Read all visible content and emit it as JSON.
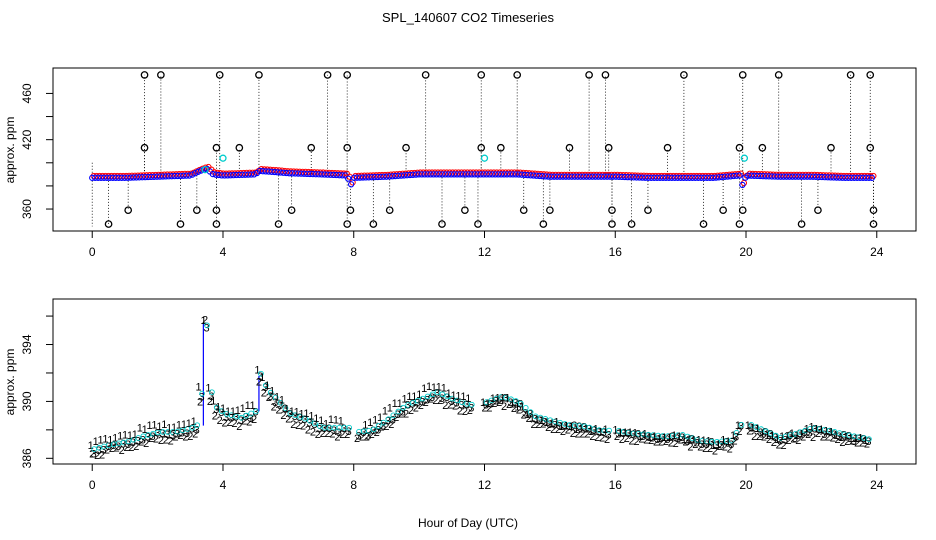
{
  "title": "SPL_140607  CO2 Timeseries",
  "xlabel": "Hour of Day (UTC)",
  "colors": {
    "blue": "#0000ff",
    "red": "#ff0000",
    "green": "#00cc00",
    "cyan": "#00cccc",
    "black": "#000000"
  },
  "chart_data": [
    {
      "type": "scatter",
      "title": "SPL_140607  CO2 Timeseries",
      "xlabel": "",
      "ylabel": "approx. ppm",
      "xlim": [
        -1.2,
        25.2
      ],
      "ylim": [
        341,
        482
      ],
      "xticks": [
        0,
        4,
        8,
        12,
        16,
        20,
        24
      ],
      "yticks": [
        360,
        380,
        400,
        420,
        440,
        460
      ],
      "ytick_labels": [
        "360",
        "",
        "",
        "420",
        "",
        "460"
      ],
      "baseline": [
        [
          0,
          387
        ],
        [
          1,
          387
        ],
        [
          2,
          388
        ],
        [
          3,
          389
        ],
        [
          3.3,
          393
        ],
        [
          3.5,
          395
        ],
        [
          3.7,
          390
        ],
        [
          4,
          389
        ],
        [
          5,
          390
        ],
        [
          5.1,
          393
        ],
        [
          5.6,
          392
        ],
        [
          6,
          391
        ],
        [
          7,
          390
        ],
        [
          7.8,
          389
        ],
        [
          7.9,
          380
        ],
        [
          8,
          387
        ],
        [
          9,
          388
        ],
        [
          10,
          390
        ],
        [
          11,
          390
        ],
        [
          12,
          390
        ],
        [
          13,
          390
        ],
        [
          14,
          388
        ],
        [
          15,
          388
        ],
        [
          16,
          388
        ],
        [
          17,
          387
        ],
        [
          18,
          387
        ],
        [
          19,
          387
        ],
        [
          19.8,
          389
        ],
        [
          19.9,
          380
        ],
        [
          20,
          389
        ],
        [
          21,
          388
        ],
        [
          22,
          388
        ],
        [
          23,
          387
        ],
        [
          23.8,
          387
        ]
      ],
      "spike_high": [
        1.6,
        2.1,
        3.9,
        5.1,
        7.2,
        7.8,
        10.2,
        11.9,
        13.0,
        15.2,
        15.7,
        18.1,
        19.9,
        21.0,
        23.2,
        23.8
      ],
      "spike_high_value": 476,
      "spike_mid": [
        1.6,
        3.8,
        4.5,
        6.7,
        7.8,
        9.6,
        11.9,
        12.5,
        14.6,
        15.8,
        17.6,
        19.8,
        20.5,
        22.6,
        23.8
      ],
      "spike_mid_value": 413,
      "spike_low1": [
        1.1,
        3.2,
        3.8,
        6.1,
        7.9,
        9.1,
        11.4,
        13.2,
        14.0,
        15.9,
        17.0,
        19.3,
        19.9,
        22.2,
        23.9
      ],
      "spike_low1_value": 359,
      "spike_low2": [
        0.5,
        2.7,
        3.8,
        5.7,
        7.8,
        8.6,
        10.7,
        11.8,
        13.8,
        15.9,
        16.5,
        18.7,
        19.8,
        21.7,
        23.9
      ],
      "spike_low2_value": 347,
      "cyan_points": [
        [
          3.45,
          394
        ],
        [
          4.0,
          404
        ],
        [
          12.0,
          404
        ],
        [
          19.95,
          404
        ]
      ]
    },
    {
      "type": "scatter",
      "title": "",
      "xlabel": "Hour of Day (UTC)",
      "ylabel": "approx. ppm",
      "xlim": [
        -1.2,
        25.2
      ],
      "ylim": [
        385.6,
        397.2
      ],
      "xticks": [
        0,
        4,
        8,
        12,
        16,
        20,
        24
      ],
      "yticks": [
        386,
        388,
        390,
        392,
        394,
        396
      ],
      "ytick_labels": [
        "386",
        "",
        "390",
        "",
        "394",
        ""
      ],
      "series": [
        {
          "name": "1",
          "color": "#ff0000",
          "offset": 0.6
        },
        {
          "name": "2",
          "color": "#00cc00",
          "offset": -0.3
        },
        {
          "name": "3",
          "color": "#0000ff",
          "offset": 0.0
        }
      ],
      "points": [
        [
          0,
          386.5
        ],
        [
          0.5,
          386.8
        ],
        [
          1,
          387.0
        ],
        [
          1.5,
          387.4
        ],
        [
          2,
          387.7
        ],
        [
          2.5,
          387.7
        ],
        [
          3,
          388.0
        ],
        [
          3.25,
          388.3
        ],
        [
          3.35,
          392.5
        ],
        [
          3.45,
          395.2
        ],
        [
          3.55,
          391.0
        ],
        [
          3.7,
          389.5
        ],
        [
          4,
          389.0
        ],
        [
          4.5,
          388.7
        ],
        [
          5,
          389.2
        ],
        [
          5.1,
          391.8
        ],
        [
          5.3,
          390.7
        ],
        [
          5.6,
          390.0
        ],
        [
          6,
          389.0
        ],
        [
          6.5,
          388.6
        ],
        [
          7,
          388.0
        ],
        [
          7.5,
          388.0
        ],
        [
          7.8,
          388.0
        ],
        [
          8,
          387.7
        ],
        [
          8.5,
          387.8
        ],
        [
          9,
          388.6
        ],
        [
          9.5,
          389.5
        ],
        [
          10,
          390.0
        ],
        [
          10.5,
          390.5
        ],
        [
          11,
          390.0
        ],
        [
          11.5,
          389.6
        ],
        [
          12,
          389.8
        ],
        [
          12.5,
          390.2
        ],
        [
          13,
          389.8
        ],
        [
          13.5,
          388.8
        ],
        [
          14,
          388.5
        ],
        [
          14.5,
          388.2
        ],
        [
          15,
          388.1
        ],
        [
          15.5,
          387.8
        ],
        [
          16,
          387.8
        ],
        [
          16.5,
          387.6
        ],
        [
          17,
          387.5
        ],
        [
          17.5,
          387.4
        ],
        [
          18,
          387.5
        ],
        [
          18.5,
          387.1
        ],
        [
          19,
          387.0
        ],
        [
          19.5,
          387.1
        ],
        [
          19.8,
          388.2
        ],
        [
          20,
          388.3
        ],
        [
          20.5,
          387.8
        ],
        [
          21,
          387.3
        ],
        [
          21.5,
          387.6
        ],
        [
          22,
          388.0
        ],
        [
          22.5,
          387.8
        ],
        [
          23,
          387.5
        ],
        [
          23.5,
          387.3
        ],
        [
          23.7,
          387.2
        ]
      ]
    }
  ]
}
